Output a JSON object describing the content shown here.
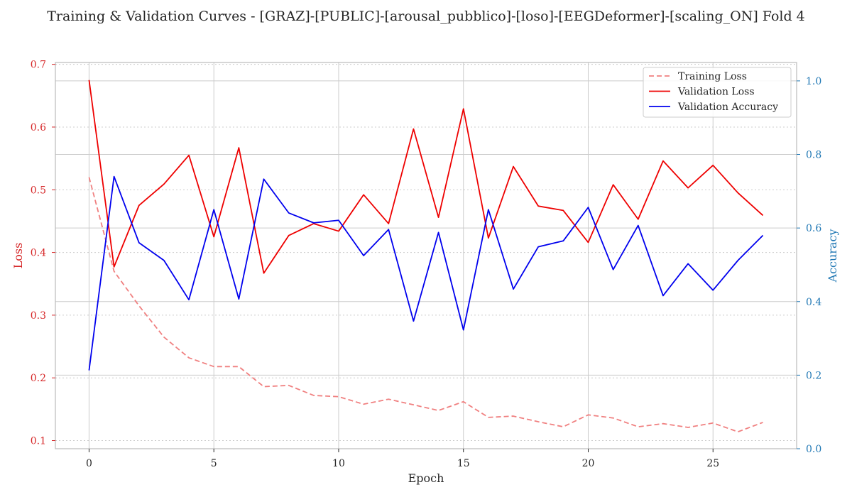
{
  "chart_data": {
    "type": "line",
    "title": "Training & Validation Curves - [GRAZ]-[PUBLIC]-[arousal_pubblico]-[loso]-[EEGDeformer]-[scaling_ON] Fold 4",
    "xlabel": "Epoch",
    "ylabel_left": "Loss",
    "ylabel_right": "Accuracy",
    "xlim": [
      -1.35,
      28.35
    ],
    "ylim_left": [
      0.087,
      0.703
    ],
    "ylim_right": [
      0.0,
      1.05
    ],
    "x_ticks": [
      0,
      5,
      10,
      15,
      20,
      25
    ],
    "y_ticks_left": [
      0.1,
      0.2,
      0.3,
      0.4,
      0.5,
      0.6,
      0.7
    ],
    "y_ticks_right": [
      0.0,
      0.2,
      0.4,
      0.6,
      0.8,
      1.0
    ],
    "grid": true,
    "legend_position": "top-right",
    "x": [
      0,
      1,
      2,
      3,
      4,
      5,
      6,
      7,
      8,
      9,
      10,
      11,
      12,
      13,
      14,
      15,
      16,
      17,
      18,
      19,
      20,
      21,
      22,
      23,
      24,
      25,
      26,
      27
    ],
    "series": [
      {
        "name": "Training Loss",
        "axis": "left",
        "style": "dashed",
        "color": "#f08080",
        "values": [
          0.52,
          0.37,
          0.315,
          0.265,
          0.232,
          0.218,
          0.218,
          0.186,
          0.188,
          0.172,
          0.17,
          0.158,
          0.166,
          0.157,
          0.148,
          0.162,
          0.137,
          0.139,
          0.13,
          0.122,
          0.141,
          0.136,
          0.122,
          0.127,
          0.121,
          0.128,
          0.114,
          0.129
        ]
      },
      {
        "name": "Validation Loss",
        "axis": "left",
        "style": "solid",
        "color": "#ee0000",
        "values": [
          0.675,
          0.377,
          0.475,
          0.509,
          0.555,
          0.425,
          0.567,
          0.367,
          0.427,
          0.446,
          0.434,
          0.492,
          0.446,
          0.597,
          0.456,
          0.629,
          0.423,
          0.537,
          0.474,
          0.467,
          0.416,
          0.508,
          0.453,
          0.546,
          0.503,
          0.539,
          0.495,
          0.459
        ]
      },
      {
        "name": "Validation Accuracy",
        "axis": "right",
        "style": "solid",
        "color": "#0000ee",
        "values": [
          0.213,
          0.74,
          0.56,
          0.512,
          0.405,
          0.65,
          0.407,
          0.733,
          0.641,
          0.614,
          0.621,
          0.525,
          0.596,
          0.347,
          0.588,
          0.323,
          0.65,
          0.434,
          0.549,
          0.565,
          0.656,
          0.487,
          0.607,
          0.416,
          0.503,
          0.431,
          0.512,
          0.58
        ]
      }
    ]
  },
  "colors": {
    "loss_axis": "#d62728",
    "accuracy_axis": "#1f77b4",
    "grid": "#cccccc",
    "frame": "#bbbbbb",
    "text": "#262626"
  }
}
